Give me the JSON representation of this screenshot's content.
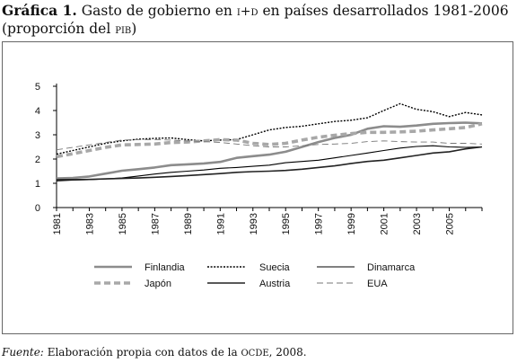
{
  "header": {
    "title_bold": "Gráfica 1.",
    "title_text_1": "Gasto de gobierno en",
    "title_sc": "i+d",
    "title_text_2": "en países desarrollados 1981-2006",
    "subtitle_text": "(proporción del",
    "subtitle_sc": "pib",
    "subtitle_end": ")"
  },
  "footer": {
    "source_label": "Fuente:",
    "source_text_1": "Elaboración propia con datos de la",
    "source_sc": "ocde",
    "source_text_2": ", 2008."
  },
  "chart_data": {
    "type": "line",
    "title": "Gasto de gobierno en I+D en países desarrollados 1981-2006",
    "xlabel": "",
    "ylabel": "",
    "ylim": [
      0,
      5
    ],
    "yticks": [
      0,
      1,
      2,
      3,
      4,
      5
    ],
    "xlim": [
      1981,
      2007
    ],
    "xticks": [
      "1981",
      "1983",
      "1985",
      "1987",
      "1989",
      "1991",
      "1993",
      "1995",
      "1997",
      "1999",
      "2001",
      "2003",
      "2005"
    ],
    "grid": false,
    "legend_position": "bottom",
    "x": [
      1981,
      1982,
      1983,
      1984,
      1985,
      1986,
      1987,
      1988,
      1989,
      1990,
      1991,
      1992,
      1993,
      1994,
      1995,
      1996,
      1997,
      1998,
      1999,
      2000,
      2001,
      2002,
      2003,
      2004,
      2005,
      2006,
      2007
    ],
    "series": [
      {
        "name": "Finlandia",
        "style": "solid-thick",
        "color": "#8c8c8c",
        "values": [
          1.2,
          1.22,
          1.28,
          1.4,
          1.52,
          1.58,
          1.65,
          1.75,
          1.78,
          1.82,
          1.88,
          2.05,
          2.12,
          2.18,
          2.3,
          2.5,
          2.7,
          2.87,
          3.0,
          3.25,
          3.35,
          3.33,
          3.38,
          3.45,
          3.48,
          3.5,
          3.47
        ]
      },
      {
        "name": "Suecia",
        "style": "dotted",
        "color": "#000000",
        "values": [
          2.2,
          2.35,
          2.5,
          2.65,
          2.75,
          2.82,
          2.85,
          2.87,
          2.8,
          2.75,
          2.78,
          2.8,
          3.0,
          3.2,
          3.3,
          3.35,
          3.45,
          3.55,
          3.6,
          3.7,
          4.0,
          4.28,
          4.05,
          3.95,
          3.75,
          3.92,
          3.82
        ]
      },
      {
        "name": "Dinamarca",
        "style": "solid-thin",
        "color": "#000000",
        "values": [
          1.1,
          1.13,
          1.15,
          1.18,
          1.22,
          1.3,
          1.38,
          1.45,
          1.5,
          1.55,
          1.62,
          1.65,
          1.7,
          1.75,
          1.85,
          1.9,
          1.95,
          2.05,
          2.15,
          2.25,
          2.35,
          2.45,
          2.52,
          2.55,
          2.5,
          2.48,
          2.5
        ]
      },
      {
        "name": "Japón",
        "style": "dashed-thick",
        "color": "#a8a8a8",
        "values": [
          2.1,
          2.22,
          2.35,
          2.48,
          2.58,
          2.6,
          2.62,
          2.68,
          2.7,
          2.75,
          2.8,
          2.78,
          2.65,
          2.6,
          2.65,
          2.78,
          2.9,
          2.98,
          3.05,
          3.1,
          3.1,
          3.12,
          3.15,
          3.2,
          3.25,
          3.3,
          3.45
        ]
      },
      {
        "name": "Austria",
        "style": "solid-dark",
        "color": "#222222",
        "values": [
          1.15,
          1.15,
          1.16,
          1.18,
          1.2,
          1.22,
          1.25,
          1.28,
          1.32,
          1.36,
          1.4,
          1.45,
          1.48,
          1.5,
          1.53,
          1.58,
          1.65,
          1.72,
          1.82,
          1.9,
          1.95,
          2.05,
          2.15,
          2.25,
          2.3,
          2.42,
          2.5
        ]
      },
      {
        "name": "EUA",
        "style": "dashed-thin",
        "color": "#777777",
        "values": [
          2.38,
          2.48,
          2.58,
          2.68,
          2.78,
          2.8,
          2.8,
          2.78,
          2.75,
          2.72,
          2.68,
          2.62,
          2.55,
          2.5,
          2.5,
          2.55,
          2.6,
          2.62,
          2.65,
          2.72,
          2.75,
          2.72,
          2.7,
          2.7,
          2.65,
          2.65,
          2.62
        ]
      }
    ]
  }
}
